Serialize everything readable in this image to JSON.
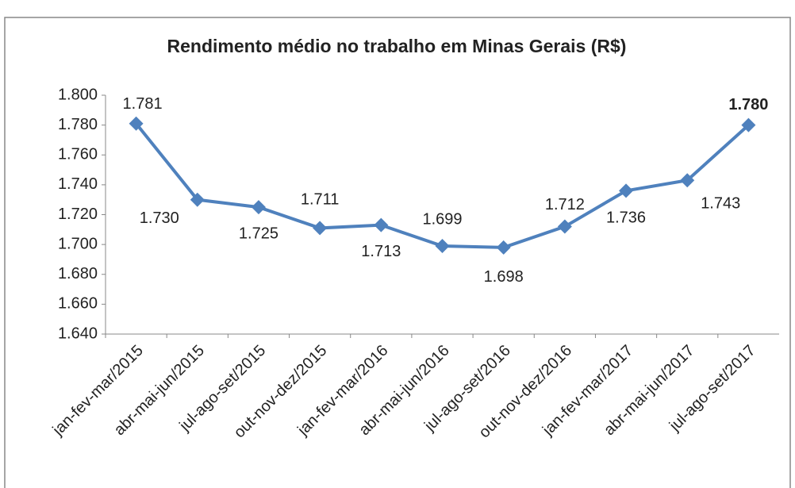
{
  "chart_data": {
    "type": "line",
    "title": "Rendimento médio no trabalho em Minas Gerais (R$)",
    "categories": [
      "jan-fev-mar/2015",
      "abr-mai-jun/2015",
      "jul-ago-set/2015",
      "out-nov-dez/2015",
      "jan-fev-mar/2016",
      "abr-mai-jun/2016",
      "jul-ago-set/2016",
      "out-nov-dez/2016",
      "jan-fev-mar/2017",
      "abr-mai-jun/2017",
      "jul-ago-set/2017"
    ],
    "series": [
      {
        "name": "Rendimento médio",
        "color": "#4f81bd",
        "values": [
          1781,
          1730,
          1725,
          1711,
          1713,
          1699,
          1698,
          1712,
          1736,
          1743,
          1780
        ],
        "value_labels": [
          "1.781",
          "1.730",
          "1.725",
          "1.711",
          "1.713",
          "1.699",
          "1.698",
          "1.712",
          "1.736",
          "1.743",
          "1.780"
        ]
      }
    ],
    "ylim": [
      1640,
      1800
    ],
    "yticks": [
      {
        "value": 1640,
        "label": "1.640"
      },
      {
        "value": 1660,
        "label": "1.660"
      },
      {
        "value": 1680,
        "label": "1.680"
      },
      {
        "value": 1700,
        "label": "1.700"
      },
      {
        "value": 1720,
        "label": "1.720"
      },
      {
        "value": 1740,
        "label": "1.740"
      },
      {
        "value": 1760,
        "label": "1.760"
      },
      {
        "value": 1780,
        "label": "1.780"
      },
      {
        "value": 1800,
        "label": "1.800"
      }
    ],
    "grid": false
  }
}
